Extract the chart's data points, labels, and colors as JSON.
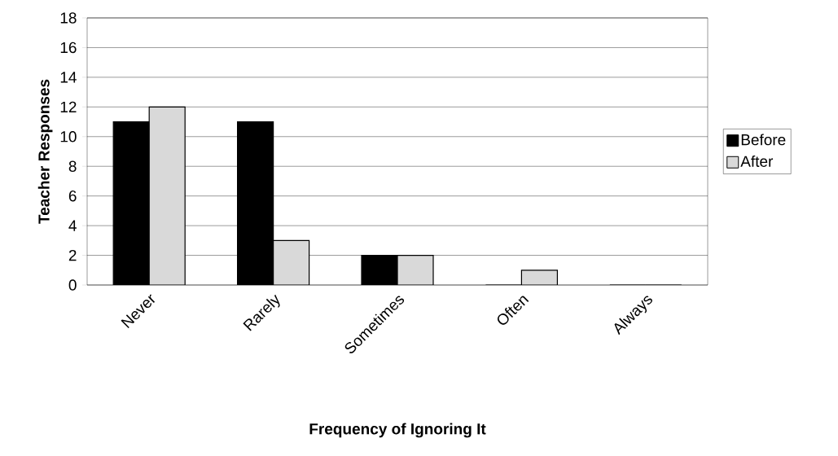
{
  "chart_data": {
    "type": "bar",
    "xlabel": "Frequency of Ignoring It",
    "ylabel": "Teacher Responses",
    "categories": [
      "Never",
      "Rarely",
      "Sometimes",
      "Often",
      "Always"
    ],
    "series": [
      {
        "name": "Before",
        "color": "#000000",
        "values": [
          11,
          11,
          2,
          0,
          0
        ]
      },
      {
        "name": "After",
        "color": "#d9d9d9",
        "values": [
          12,
          3,
          2,
          1,
          0
        ]
      }
    ],
    "ylim": [
      0,
      18
    ],
    "yticks": [
      0,
      2,
      4,
      6,
      8,
      10,
      12,
      14,
      16,
      18
    ],
    "grid": "y",
    "legend": "right"
  }
}
